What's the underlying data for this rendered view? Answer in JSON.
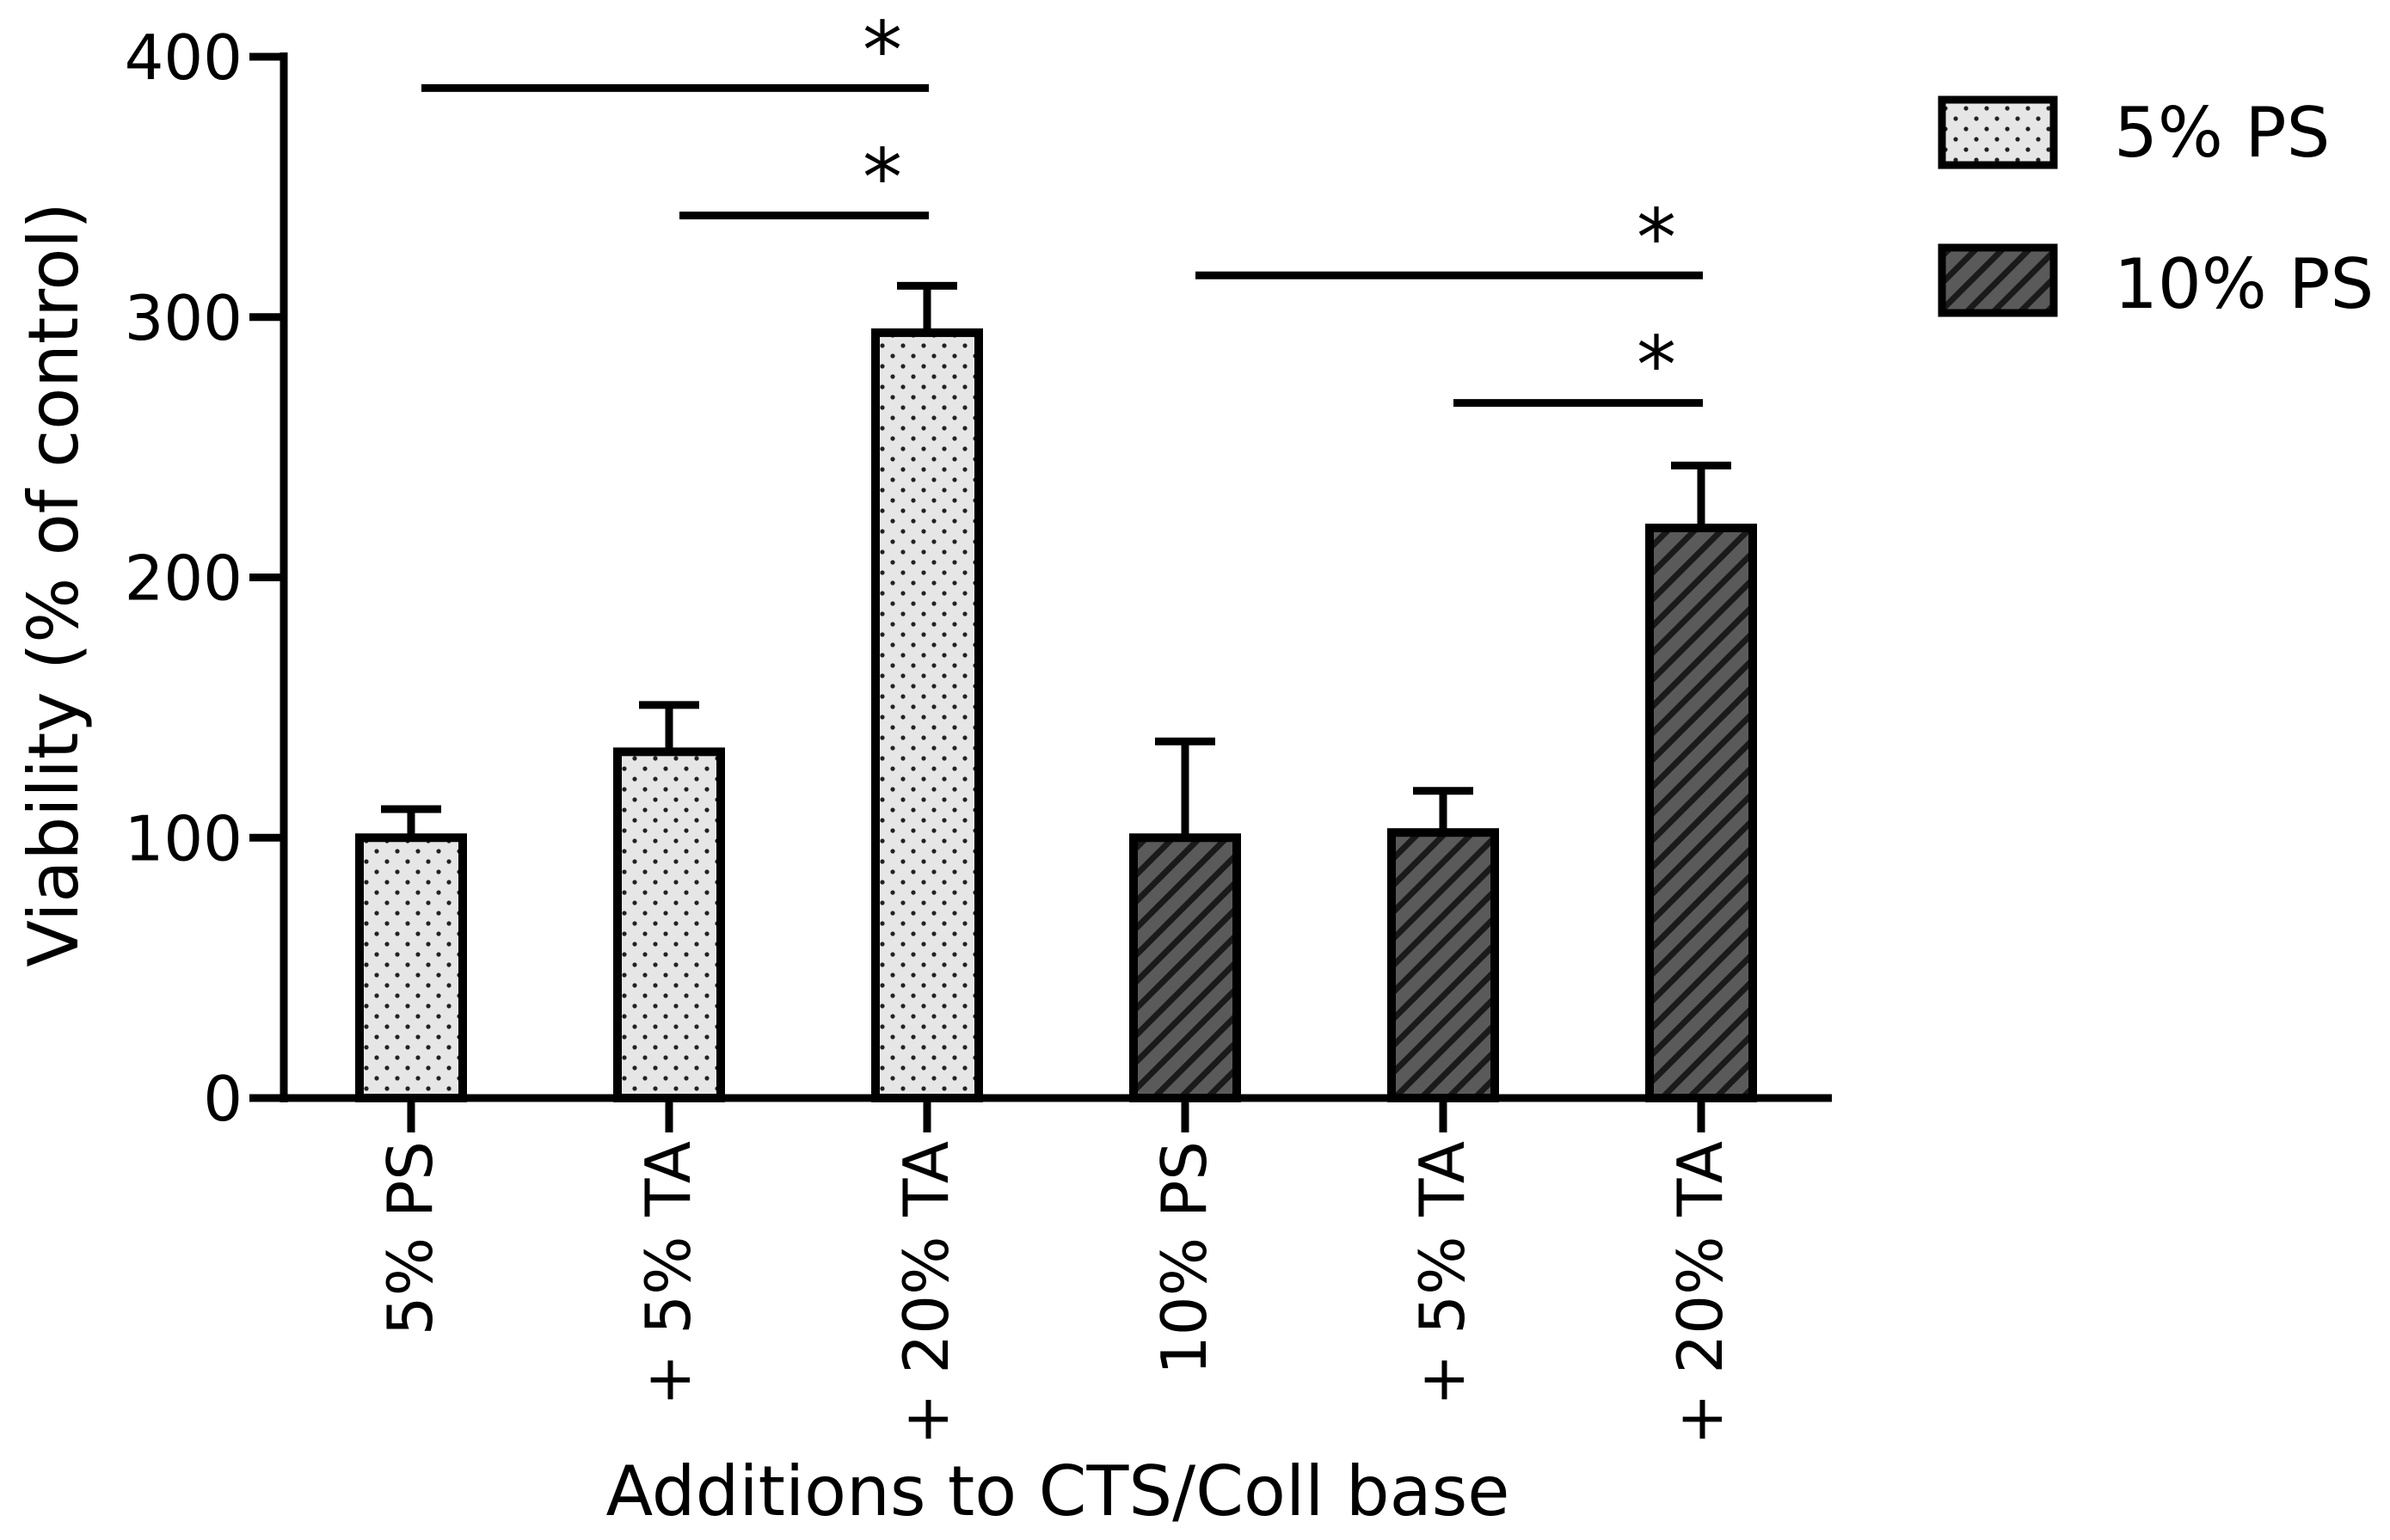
{
  "chart_data": {
    "type": "bar",
    "title": "",
    "xlabel": "Additions to CTS/Coll base",
    "ylabel": "Viability (% of control)",
    "ylim": [
      0,
      400
    ],
    "yticks": [
      0,
      100,
      200,
      300,
      400
    ],
    "categories": [
      "5% PS",
      "+ 5% TA",
      "+ 20% TA",
      "10% PS",
      "+ 5% TA",
      "+ 20% TA"
    ],
    "bars": [
      {
        "category": "5% PS",
        "series": "5% PS",
        "value": 100,
        "error": 11
      },
      {
        "category": "+ 5% TA",
        "series": "5% PS",
        "value": 133,
        "error": 18
      },
      {
        "category": "+ 20% TA",
        "series": "5% PS",
        "value": 294,
        "error": 18
      },
      {
        "category": "10% PS",
        "series": "10% PS",
        "value": 100,
        "error": 37
      },
      {
        "category": "+ 5% TA",
        "series": "10% PS",
        "value": 102,
        "error": 16
      },
      {
        "category": "+ 20% TA",
        "series": "10% PS",
        "value": 219,
        "error": 24
      }
    ],
    "series": [
      {
        "name": "5% PS",
        "pattern": "dots",
        "color": "#e6e6e6"
      },
      {
        "name": "10% PS",
        "pattern": "hatch",
        "color": "#5a5a5a"
      }
    ],
    "legend": {
      "position": "top-right",
      "entries": [
        "5% PS",
        "10% PS"
      ]
    },
    "significance": [
      {
        "from": 0,
        "to": 2,
        "y": 388,
        "label": "*"
      },
      {
        "from": 1,
        "to": 2,
        "y": 339,
        "label": "*"
      },
      {
        "from": 3,
        "to": 5,
        "y": 316,
        "label": "*"
      },
      {
        "from": 4,
        "to": 5,
        "y": 267,
        "label": "*"
      }
    ]
  }
}
